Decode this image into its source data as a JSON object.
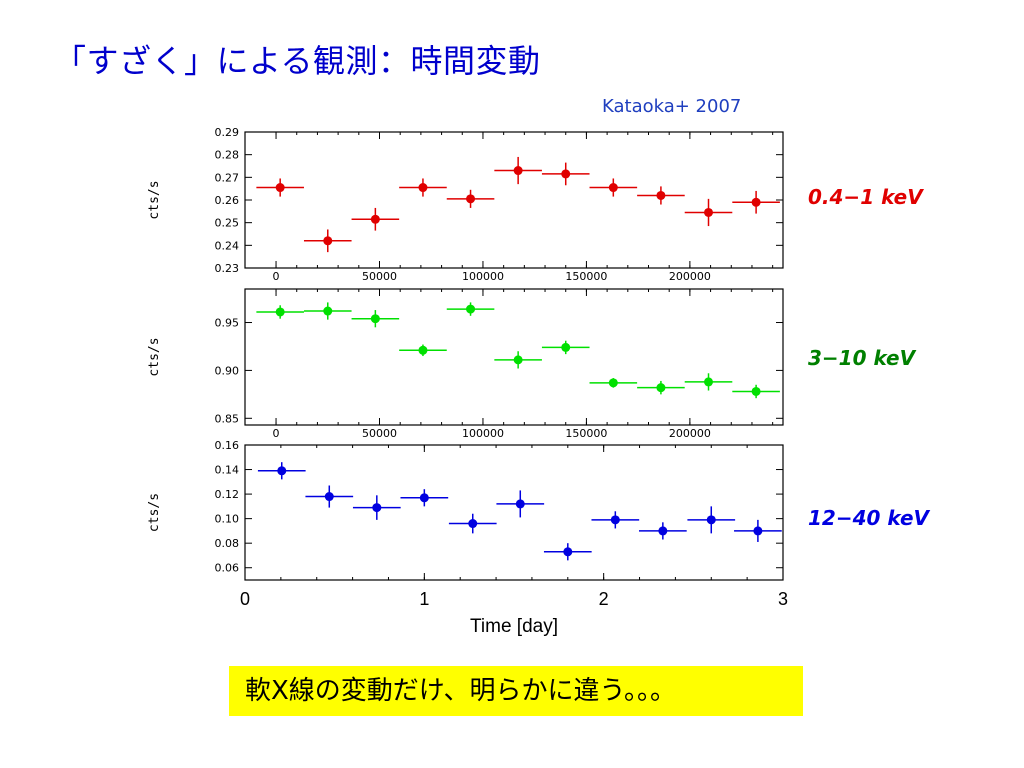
{
  "slide": {
    "title": "「すざく」による観測：時間変動",
    "citation": "Kataoka+ 2007",
    "conclusion": "軟X線の変動だけ、明らかに違う。。。"
  },
  "chart_data": [
    {
      "type": "scatter",
      "ylabel": "cts/s",
      "band_label": "0.4−1 keV",
      "color": "#e00000",
      "ylim": [
        0.23,
        0.29
      ],
      "yticks": [
        "0.23",
        "0.24",
        "0.25",
        "0.26",
        "0.27",
        "0.28",
        "0.29"
      ],
      "xlim": [
        -15000,
        245000
      ],
      "xticks": [
        0,
        50000,
        100000,
        150000,
        200000
      ],
      "xticklabels": [
        "0",
        "50000",
        "100000",
        "150000",
        "200000"
      ],
      "x": [
        2000,
        25000,
        48000,
        71000,
        94000,
        117000,
        140000,
        163000,
        186000,
        209000,
        232000
      ],
      "y": [
        0.2655,
        0.242,
        0.2515,
        0.2655,
        0.2605,
        0.273,
        0.2715,
        0.2655,
        0.262,
        0.2545,
        0.259
      ],
      "xerr": 11500,
      "yerr": [
        0.004,
        0.005,
        0.005,
        0.004,
        0.004,
        0.006,
        0.005,
        0.004,
        0.004,
        0.006,
        0.005
      ]
    },
    {
      "type": "scatter",
      "ylabel": "cts/s",
      "band_label": "3−10 keV",
      "color": "#00e000",
      "ylim": [
        0.843,
        0.985
      ],
      "yticks": [
        "0.85",
        "0.90",
        "0.95"
      ],
      "xlim": [
        -15000,
        245000
      ],
      "xticks": [
        0,
        50000,
        100000,
        150000,
        200000
      ],
      "xticklabels": [
        "0",
        "50000",
        "100000",
        "150000",
        "200000"
      ],
      "x": [
        2000,
        25000,
        48000,
        71000,
        94000,
        117000,
        140000,
        163000,
        186000,
        209000,
        232000
      ],
      "y": [
        0.961,
        0.962,
        0.954,
        0.921,
        0.964,
        0.911,
        0.924,
        0.887,
        0.882,
        0.888,
        0.878
      ],
      "xerr": 11500,
      "yerr": [
        0.007,
        0.009,
        0.009,
        0.006,
        0.007,
        0.009,
        0.007,
        0.005,
        0.007,
        0.009,
        0.007
      ]
    },
    {
      "type": "scatter",
      "ylabel": "cts/s",
      "band_label": "12−40 keV",
      "color": "#0000e0",
      "ylim": [
        0.05,
        0.16
      ],
      "yticks": [
        "0.06",
        "0.08",
        "0.10",
        "0.12",
        "0.14",
        "0.16"
      ],
      "xlim": [
        0,
        3
      ],
      "xticks": [
        0,
        1,
        2,
        3
      ],
      "xticklabels": [
        "0",
        "1",
        "2",
        "3"
      ],
      "xlabel": "Time [day]",
      "x": [
        0.205,
        0.47,
        0.735,
        1.0,
        1.27,
        1.535,
        1.8,
        2.065,
        2.33,
        2.6,
        2.86
      ],
      "y": [
        0.139,
        0.118,
        0.109,
        0.117,
        0.096,
        0.112,
        0.073,
        0.099,
        0.09,
        0.099,
        0.09
      ],
      "xerr": 0.133,
      "yerr": [
        0.007,
        0.009,
        0.01,
        0.007,
        0.008,
        0.011,
        0.007,
        0.007,
        0.007,
        0.011,
        0.009
      ]
    }
  ]
}
